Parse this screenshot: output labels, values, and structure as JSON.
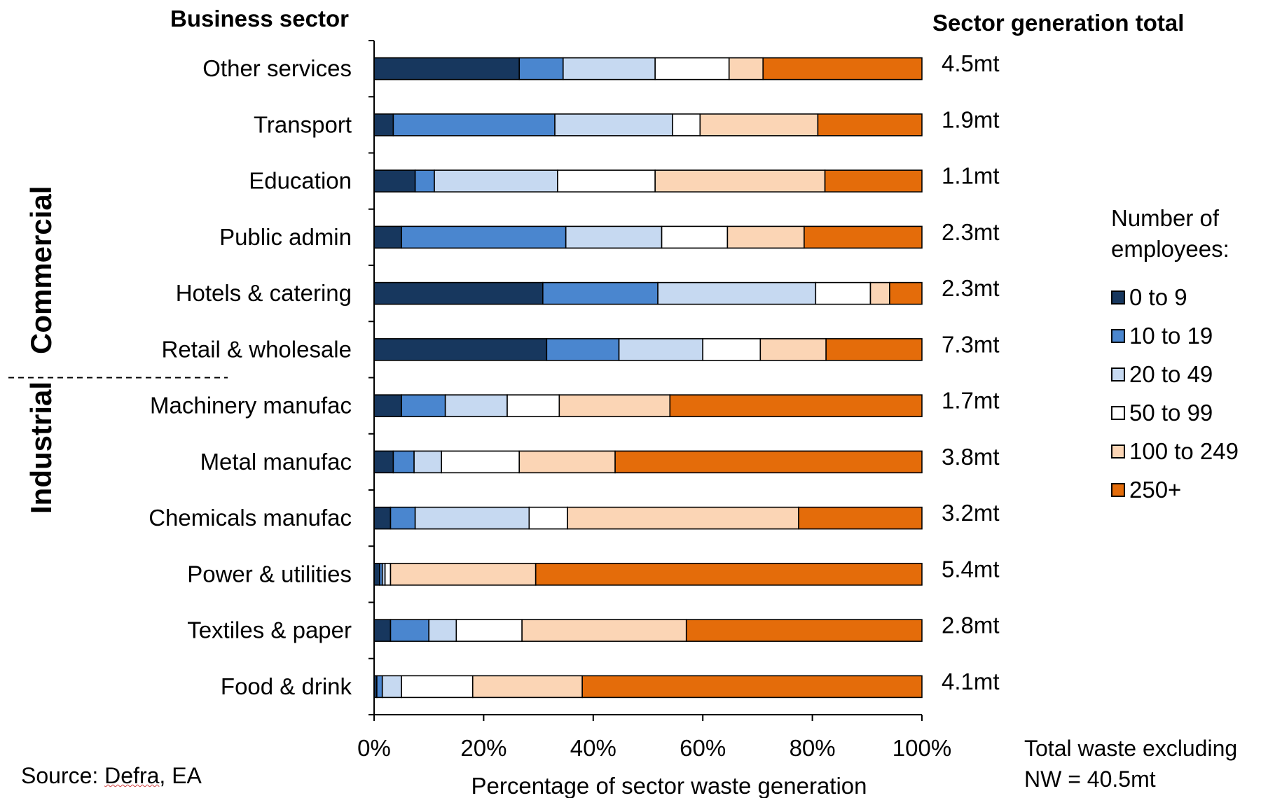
{
  "headers": {
    "sector_header": "Business sector",
    "total_header": "Sector generation total"
  },
  "group_labels": {
    "commercial": "Commercial",
    "industrial": "Industrial"
  },
  "source": {
    "prefix": "Source: ",
    "underlined": "Defra",
    "suffix": ", EA"
  },
  "total_note": {
    "line1": "Total waste excluding",
    "line2": "NW = 40.5mt"
  },
  "legend": {
    "title": "Number of employees:"
  },
  "chart_data": {
    "type": "bar",
    "orientation": "horizontal",
    "stacked": true,
    "xlabel": "Percentage of sector waste generation",
    "xlim": [
      0,
      100
    ],
    "xticks": [
      "0%",
      "20%",
      "40%",
      "60%",
      "80%",
      "100%"
    ],
    "legend_position": "right",
    "categories": [
      "Other services",
      "Transport",
      "Education",
      "Public admin",
      "Hotels & catering",
      "Retail & wholesale",
      "Machinery manufac",
      "Metal manufac",
      "Chemicals manufac",
      "Power & utilities",
      "Textiles & paper",
      "Food & drink"
    ],
    "totals": [
      "4.5mt",
      "1.9mt",
      "1.1mt",
      "2.3mt",
      "2.3mt",
      "7.3mt",
      "1.7mt",
      "3.8mt",
      "3.2mt",
      "5.4mt",
      "2.8mt",
      "4.1mt"
    ],
    "series": [
      {
        "name": "0 to 9",
        "color": "#17375e",
        "values": [
          26.5,
          3.5,
          7.5,
          5.0,
          30.8,
          31.5,
          5.0,
          3.5,
          3.0,
          1.0,
          3.0,
          0.5
        ]
      },
      {
        "name": "10 to 19",
        "color": "#4a86cf",
        "values": [
          8.0,
          29.5,
          3.5,
          30.0,
          21.0,
          13.2,
          8.0,
          3.8,
          4.5,
          0.5,
          7.0,
          1.0
        ]
      },
      {
        "name": "20 to 49",
        "color": "#c6d9f1",
        "values": [
          16.8,
          21.5,
          22.5,
          17.5,
          28.8,
          15.3,
          11.3,
          5.0,
          20.8,
          0.5,
          5.0,
          3.5
        ]
      },
      {
        "name": "50 to 99",
        "color": "#ffffff",
        "values": [
          13.5,
          5.0,
          17.8,
          12.0,
          10.0,
          10.5,
          9.5,
          14.2,
          7.0,
          1.0,
          12.0,
          13.0
        ]
      },
      {
        "name": "100 to 249",
        "color": "#fbd5b5",
        "values": [
          6.2,
          21.5,
          31.0,
          14.0,
          3.5,
          12.0,
          20.2,
          17.5,
          42.2,
          26.5,
          30.0,
          20.0
        ]
      },
      {
        "name": "250+",
        "color": "#e46c0a",
        "values": [
          29.0,
          19.0,
          17.7,
          21.5,
          5.9,
          17.5,
          46.0,
          56.0,
          22.5,
          70.5,
          43.0,
          62.0
        ]
      }
    ]
  }
}
